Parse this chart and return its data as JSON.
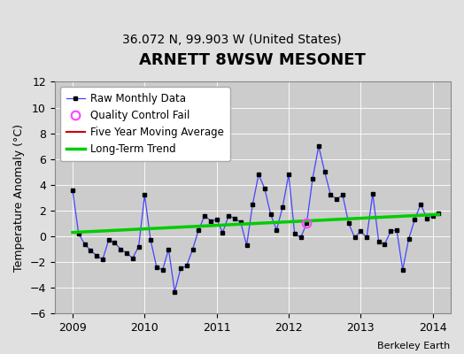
{
  "title": "ARNETT 8WSW MESONET",
  "subtitle": "36.072 N, 99.903 W (United States)",
  "ylabel": "Temperature Anomaly (°C)",
  "credit": "Berkeley Earth",
  "ylim": [
    -6,
    12
  ],
  "yticks": [
    -6,
    -4,
    -2,
    0,
    2,
    4,
    6,
    8,
    10,
    12
  ],
  "xlim": [
    2008.75,
    2014.25
  ],
  "bg_color": "#e0e0e0",
  "plot_bg_color": "#cccccc",
  "raw_x": [
    2009.0,
    2009.083,
    2009.167,
    2009.25,
    2009.333,
    2009.417,
    2009.5,
    2009.583,
    2009.667,
    2009.75,
    2009.833,
    2009.917,
    2010.0,
    2010.083,
    2010.167,
    2010.25,
    2010.333,
    2010.417,
    2010.5,
    2010.583,
    2010.667,
    2010.75,
    2010.833,
    2010.917,
    2011.0,
    2011.083,
    2011.167,
    2011.25,
    2011.333,
    2011.417,
    2011.5,
    2011.583,
    2011.667,
    2011.75,
    2011.833,
    2011.917,
    2012.0,
    2012.083,
    2012.167,
    2012.25,
    2012.333,
    2012.417,
    2012.5,
    2012.583,
    2012.667,
    2012.75,
    2012.833,
    2012.917,
    2013.0,
    2013.083,
    2013.167,
    2013.25,
    2013.333,
    2013.417,
    2013.5,
    2013.583,
    2013.667,
    2013.75,
    2013.833,
    2013.917,
    2014.0,
    2014.083
  ],
  "raw_y": [
    3.6,
    0.2,
    -0.6,
    -1.1,
    -1.5,
    -1.8,
    -0.3,
    -0.5,
    -1.0,
    -1.3,
    -1.7,
    -0.8,
    3.2,
    -0.3,
    -2.4,
    -2.6,
    -1.0,
    -4.3,
    -2.5,
    -2.3,
    -1.0,
    0.5,
    1.6,
    1.2,
    1.3,
    0.3,
    1.6,
    1.4,
    1.1,
    -0.7,
    2.5,
    4.8,
    3.7,
    1.7,
    0.5,
    2.3,
    4.8,
    0.2,
    -0.1,
    1.0,
    4.5,
    7.0,
    5.0,
    3.2,
    2.9,
    3.2,
    1.0,
    -0.1,
    0.4,
    -0.1,
    3.3,
    -0.4,
    -0.6,
    0.4,
    0.5,
    -2.6,
    -0.2,
    1.3,
    2.5,
    1.4,
    1.6,
    1.8
  ],
  "qc_fail_x": [
    2012.25
  ],
  "qc_fail_y": [
    1.0
  ],
  "trend_x": [
    2009.0,
    2014.083
  ],
  "trend_y": [
    0.3,
    1.7
  ],
  "raw_line_color": "#4444ff",
  "raw_marker_color": "#000000",
  "trend_color": "#00cc00",
  "qc_color": "#ff44ff",
  "moving_avg_color": "#cc0000",
  "title_fontsize": 13,
  "subtitle_fontsize": 10,
  "ylabel_fontsize": 9,
  "tick_fontsize": 9,
  "legend_fontsize": 8.5
}
